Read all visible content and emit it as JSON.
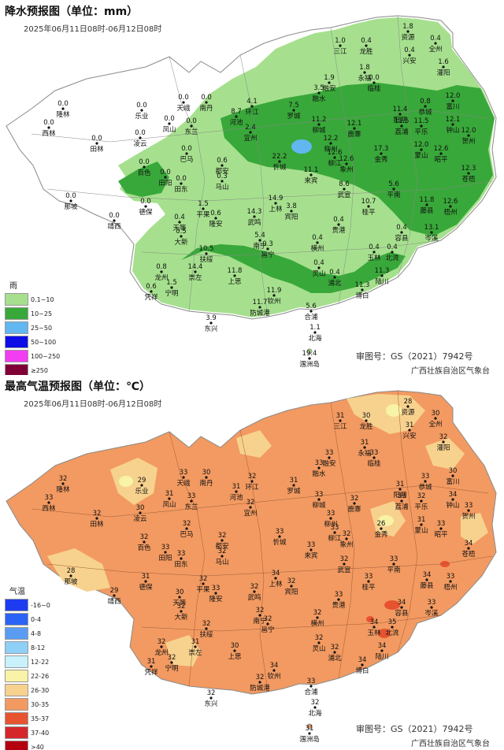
{
  "rain_map": {
    "title": "降水预报图（单位：mm）",
    "date_range": "2025年06月11日08时-06月12日08时",
    "legend_title": "雨",
    "legend": [
      {
        "label": "0.1~10",
        "color": "#a6e08e"
      },
      {
        "label": "10~25",
        "color": "#39a83a"
      },
      {
        "label": "25~50",
        "color": "#62b7f1"
      },
      {
        "label": "50~100",
        "color": "#0d0de6"
      },
      {
        "label": "100~250",
        "color": "#f33df2"
      },
      {
        "label": "≥250",
        "color": "#7f0036"
      }
    ],
    "approval": "审图号：GS（2021）7942号",
    "agency": "广西壮族自治区气象台",
    "cities": [
      {
        "name": "资源",
        "value": "1.8"
      },
      {
        "name": "全州",
        "value": "0.4"
      },
      {
        "name": "三江",
        "value": "1.0"
      },
      {
        "name": "龙胜",
        "value": "0.4"
      },
      {
        "name": "兴安",
        "value": "0.4"
      },
      {
        "name": "灌阳",
        "value": "1.6"
      },
      {
        "name": "融安",
        "value": "1.9"
      },
      {
        "name": "临桂",
        "value": "0.0"
      },
      {
        "name": "永福",
        "value": "1.8"
      },
      {
        "name": "融水",
        "value": "3.5"
      },
      {
        "name": "天峨",
        "value": "0.0"
      },
      {
        "name": "南丹",
        "value": "0.0"
      },
      {
        "name": "隆林",
        "value": "0.0"
      },
      {
        "name": "西林",
        "value": "0.0"
      },
      {
        "name": "乐业",
        "value": "0.0"
      },
      {
        "name": "凤山",
        "value": "0.0"
      },
      {
        "name": "东兰",
        "value": "0.0"
      },
      {
        "name": "环江",
        "value": "4.1"
      },
      {
        "name": "河池",
        "value": "8.7"
      },
      {
        "name": "罗城",
        "value": "7.5"
      },
      {
        "name": "宜州",
        "value": "2.4"
      },
      {
        "name": "柳城",
        "value": "11.2"
      },
      {
        "name": "柳州",
        "value": "12.2"
      },
      {
        "name": "鹿寨",
        "value": "12.1"
      },
      {
        "name": "阳朔",
        "value": "11.4"
      },
      {
        "name": "荔浦",
        "value": "11.5"
      },
      {
        "name": "平乐",
        "value": "11.5"
      },
      {
        "name": "恭城",
        "value": "0.8"
      },
      {
        "name": "富川",
        "value": "12.0"
      },
      {
        "name": "钟山",
        "value": "12.1"
      },
      {
        "name": "贺州",
        "value": "12.0"
      },
      {
        "name": "田林",
        "value": "0.0"
      },
      {
        "name": "凌云",
        "value": "0.0"
      },
      {
        "name": "巴马",
        "value": "0.0"
      },
      {
        "name": "百色",
        "value": "0.0"
      },
      {
        "name": "田阳",
        "value": "0.0"
      },
      {
        "name": "田东",
        "value": "0.0"
      },
      {
        "name": "都安",
        "value": "0.6"
      },
      {
        "name": "忻城",
        "value": "22.2"
      },
      {
        "name": "马山",
        "value": "0.3"
      },
      {
        "name": "柳江",
        "value": "12.6"
      },
      {
        "name": "金秀",
        "value": "17.3"
      },
      {
        "name": "蒙山",
        "value": "12.0"
      },
      {
        "name": "昭平",
        "value": "12.6"
      },
      {
        "name": "象州",
        "value": "12.6"
      },
      {
        "name": "来宾",
        "value": "11.1"
      },
      {
        "name": "苍梧",
        "value": "12.3"
      },
      {
        "name": "那坡",
        "value": "0.0"
      },
      {
        "name": "德保",
        "value": "0.0"
      },
      {
        "name": "靖西",
        "value": "0.0"
      },
      {
        "name": "天等",
        "value": "0.4"
      },
      {
        "name": "大新",
        "value": "0.5"
      },
      {
        "name": "平果",
        "value": "1.5"
      },
      {
        "name": "隆安",
        "value": "0.6"
      },
      {
        "name": "武鸣",
        "value": "14.3"
      },
      {
        "name": "上林",
        "value": "14.9"
      },
      {
        "name": "宾阳",
        "value": "3.8"
      },
      {
        "name": "武宣",
        "value": "8.6"
      },
      {
        "name": "桂平",
        "value": "10.7"
      },
      {
        "name": "平南",
        "value": "5.6"
      },
      {
        "name": "藤县",
        "value": "11.8"
      },
      {
        "name": "岑溪",
        "value": "13.1"
      },
      {
        "name": "梧州",
        "value": "12.6"
      },
      {
        "name": "扶绥",
        "value": "10.5"
      },
      {
        "name": "南宁",
        "value": "5.4"
      },
      {
        "name": "邕宁",
        "value": "0.3"
      },
      {
        "name": "横州",
        "value": "0.4"
      },
      {
        "name": "贵港",
        "value": "0.4"
      },
      {
        "name": "玉林",
        "value": "0.4"
      },
      {
        "name": "北流",
        "value": "0.4"
      },
      {
        "name": "容县",
        "value": "0.4"
      },
      {
        "name": "崇左",
        "value": "14.4"
      },
      {
        "name": "龙州",
        "value": "0.8"
      },
      {
        "name": "宁明",
        "value": "1.5"
      },
      {
        "name": "凭祥",
        "value": "0.6"
      },
      {
        "name": "上思",
        "value": "11.8"
      },
      {
        "name": "灵山",
        "value": "0.4"
      },
      {
        "name": "浦北",
        "value": "0.4"
      },
      {
        "name": "博白",
        "value": "11.3"
      },
      {
        "name": "陆川",
        "value": "11.3"
      },
      {
        "name": "钦州",
        "value": "11.9"
      },
      {
        "name": "防城港",
        "value": "11.7"
      },
      {
        "name": "合浦",
        "value": "5.6"
      },
      {
        "name": "东兴",
        "value": "3.9"
      },
      {
        "name": "北海",
        "value": "1.1"
      },
      {
        "name": "涠洲岛",
        "value": "19.4"
      }
    ]
  },
  "temp_map": {
    "title": "最高气温预报图（单位：℃）",
    "date_range": "2025年06月11日08时-06月12日08时",
    "legend_title": "气温",
    "legend": [
      {
        "label": "-16~0",
        "color": "#1d3cf1"
      },
      {
        "label": "0-4",
        "color": "#2b63f5"
      },
      {
        "label": "4-8",
        "color": "#5a9cf3"
      },
      {
        "label": "8-12",
        "color": "#8fd0f7"
      },
      {
        "label": "12-22",
        "color": "#c8f1fb"
      },
      {
        "label": "22-26",
        "color": "#f8f3a6"
      },
      {
        "label": "26-30",
        "color": "#f7d28e"
      },
      {
        "label": "30-35",
        "color": "#f29a61"
      },
      {
        "label": "35-37",
        "color": "#e8532f"
      },
      {
        "label": "37-40",
        "color": "#d5272a"
      },
      {
        "label": ">40",
        "color": "#b4000f"
      }
    ],
    "approval": "审图号：GS（2021）7942号",
    "agency": "广西壮族自治区气象台",
    "cities": [
      {
        "name": "资源",
        "value": "28"
      },
      {
        "name": "全州",
        "value": "30"
      },
      {
        "name": "三江",
        "value": "31"
      },
      {
        "name": "龙胜",
        "value": "30"
      },
      {
        "name": "兴安",
        "value": "31"
      },
      {
        "name": "灌阳",
        "value": "32"
      },
      {
        "name": "融安",
        "value": "33"
      },
      {
        "name": "临桂",
        "value": "33"
      },
      {
        "name": "永福",
        "value": "31"
      },
      {
        "name": "融水",
        "value": "33"
      },
      {
        "name": "天峨",
        "value": "33"
      },
      {
        "name": "南丹",
        "value": "30"
      },
      {
        "name": "隆林",
        "value": "32"
      },
      {
        "name": "西林",
        "value": "33"
      },
      {
        "name": "乐业",
        "value": "29"
      },
      {
        "name": "凤山",
        "value": "31"
      },
      {
        "name": "东兰",
        "value": "33"
      },
      {
        "name": "环江",
        "value": "32"
      },
      {
        "name": "河池",
        "value": "31"
      },
      {
        "name": "罗城",
        "value": "31"
      },
      {
        "name": "宜州",
        "value": "32"
      },
      {
        "name": "柳城",
        "value": "33"
      },
      {
        "name": "柳州",
        "value": "33"
      },
      {
        "name": "鹿寨",
        "value": "32"
      },
      {
        "name": "阳朔",
        "value": "31"
      },
      {
        "name": "荔浦",
        "value": "33"
      },
      {
        "name": "平乐",
        "value": "32"
      },
      {
        "name": "恭城",
        "value": "33"
      },
      {
        "name": "富川",
        "value": "30"
      },
      {
        "name": "钟山",
        "value": "34"
      },
      {
        "name": "贺州",
        "value": "33"
      },
      {
        "name": "田林",
        "value": "32"
      },
      {
        "name": "凌云",
        "value": "30"
      },
      {
        "name": "巴马",
        "value": "32"
      },
      {
        "name": "百色",
        "value": "32"
      },
      {
        "name": "田阳",
        "value": "33"
      },
      {
        "name": "田东",
        "value": "33"
      },
      {
        "name": "都安",
        "value": "32"
      },
      {
        "name": "忻城",
        "value": "33"
      },
      {
        "name": "马山",
        "value": "32"
      },
      {
        "name": "柳江",
        "value": "33"
      },
      {
        "name": "金秀",
        "value": "26"
      },
      {
        "name": "蒙山",
        "value": "31"
      },
      {
        "name": "昭平",
        "value": "33"
      },
      {
        "name": "象州",
        "value": "32"
      },
      {
        "name": "来宾",
        "value": "33"
      },
      {
        "name": "苍梧",
        "value": "34"
      },
      {
        "name": "那坡",
        "value": "28"
      },
      {
        "name": "德保",
        "value": "31"
      },
      {
        "name": "靖西",
        "value": "29"
      },
      {
        "name": "天等",
        "value": "30"
      },
      {
        "name": "大新",
        "value": "32"
      },
      {
        "name": "平果",
        "value": "32"
      },
      {
        "name": "隆安",
        "value": "33"
      },
      {
        "name": "武鸣",
        "value": "32"
      },
      {
        "name": "上林",
        "value": "34"
      },
      {
        "name": "宾阳",
        "value": "32"
      },
      {
        "name": "武宣",
        "value": "32"
      },
      {
        "name": "桂平",
        "value": "33"
      },
      {
        "name": "平南",
        "value": "33"
      },
      {
        "name": "藤县",
        "value": "34"
      },
      {
        "name": "岑溪",
        "value": "33"
      },
      {
        "name": "梧州",
        "value": "33"
      },
      {
        "name": "扶绥",
        "value": "32"
      },
      {
        "name": "南宁",
        "value": "32"
      },
      {
        "name": "邕宁",
        "value": "32"
      },
      {
        "name": "横州",
        "value": "32"
      },
      {
        "name": "贵港",
        "value": "33"
      },
      {
        "name": "玉林",
        "value": "34"
      },
      {
        "name": "北流",
        "value": "35"
      },
      {
        "name": "容县",
        "value": "34"
      },
      {
        "name": "崇左",
        "value": "31"
      },
      {
        "name": "龙州",
        "value": "32"
      },
      {
        "name": "宁明",
        "value": "32"
      },
      {
        "name": "凭祥",
        "value": "31"
      },
      {
        "name": "上思",
        "value": "30"
      },
      {
        "name": "灵山",
        "value": "32"
      },
      {
        "name": "浦北",
        "value": "32"
      },
      {
        "name": "博白",
        "value": "34"
      },
      {
        "name": "陆川",
        "value": "34"
      },
      {
        "name": "钦州",
        "value": "34"
      },
      {
        "name": "防城港",
        "value": "32"
      },
      {
        "name": "合浦",
        "value": "33"
      },
      {
        "name": "东兴",
        "value": "32"
      },
      {
        "name": "北海",
        "value": "32"
      },
      {
        "name": "涠洲岛",
        "value": "31"
      }
    ]
  }
}
